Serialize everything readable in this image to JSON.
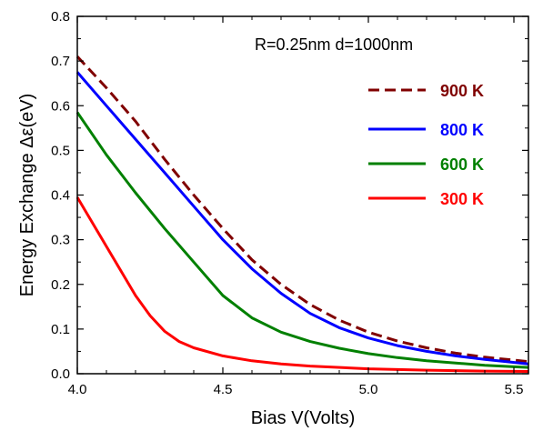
{
  "chart_data": {
    "type": "line",
    "xlabel": "Bias V(Volts)",
    "ylabel": "Energy Exchange Δε(eV)",
    "annotation": "R=0.25nm  d=1000nm",
    "xlim": [
      4.0,
      5.55
    ],
    "ylim": [
      0.0,
      0.8
    ],
    "x_ticks": [
      4.0,
      4.5,
      5.0,
      5.5
    ],
    "x_tick_labels": [
      "4.0",
      "4.5",
      "5.0",
      "5.5"
    ],
    "y_ticks": [
      0.0,
      0.1,
      0.2,
      0.3,
      0.4,
      0.5,
      0.6,
      0.7,
      0.8
    ],
    "y_tick_labels": [
      "0.0",
      "0.1",
      "0.2",
      "0.3",
      "0.4",
      "0.5",
      "0.6",
      "0.7",
      "0.8"
    ],
    "grid": false,
    "legend_position": "top-right",
    "series": [
      {
        "name": "900 K",
        "color": "#800000",
        "dash": true,
        "x": [
          4.0,
          4.1,
          4.2,
          4.3,
          4.4,
          4.5,
          4.6,
          4.7,
          4.8,
          4.9,
          5.0,
          5.1,
          5.2,
          5.3,
          5.4,
          5.55
        ],
        "y": [
          0.71,
          0.64,
          0.565,
          0.48,
          0.4,
          0.325,
          0.255,
          0.2,
          0.155,
          0.12,
          0.093,
          0.073,
          0.058,
          0.046,
          0.037,
          0.027
        ]
      },
      {
        "name": "800 K",
        "color": "#0000ff",
        "dash": false,
        "x": [
          4.0,
          4.1,
          4.2,
          4.3,
          4.4,
          4.5,
          4.6,
          4.7,
          4.8,
          4.9,
          5.0,
          5.1,
          5.2,
          5.3,
          5.4,
          5.55
        ],
        "y": [
          0.675,
          0.6,
          0.525,
          0.45,
          0.375,
          0.3,
          0.235,
          0.18,
          0.135,
          0.103,
          0.08,
          0.063,
          0.05,
          0.04,
          0.032,
          0.022
        ]
      },
      {
        "name": "600 K",
        "color": "#008000",
        "dash": false,
        "x": [
          4.0,
          4.1,
          4.2,
          4.3,
          4.4,
          4.5,
          4.6,
          4.7,
          4.8,
          4.9,
          5.0,
          5.1,
          5.2,
          5.3,
          5.4,
          5.55
        ],
        "y": [
          0.585,
          0.49,
          0.405,
          0.325,
          0.25,
          0.175,
          0.125,
          0.093,
          0.072,
          0.057,
          0.045,
          0.036,
          0.029,
          0.024,
          0.019,
          0.014
        ]
      },
      {
        "name": "300 K",
        "color": "#ff0000",
        "dash": false,
        "x": [
          4.0,
          4.05,
          4.1,
          4.15,
          4.2,
          4.25,
          4.3,
          4.35,
          4.4,
          4.5,
          4.6,
          4.7,
          4.8,
          5.0,
          5.2,
          5.4,
          5.55
        ],
        "y": [
          0.395,
          0.34,
          0.285,
          0.23,
          0.175,
          0.13,
          0.095,
          0.072,
          0.058,
          0.04,
          0.029,
          0.022,
          0.017,
          0.011,
          0.008,
          0.006,
          0.005
        ]
      }
    ]
  }
}
